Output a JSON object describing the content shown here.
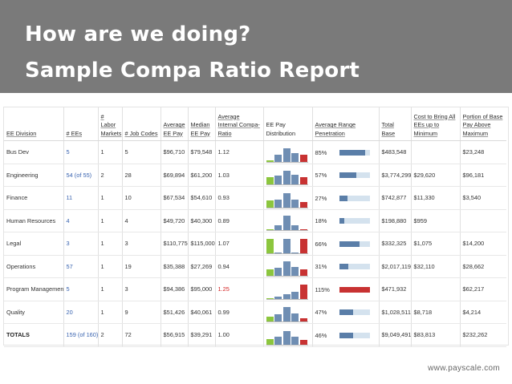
{
  "slide": {
    "title_line1": "How are we doing?",
    "title_line2": "Sample Compa Ratio Report",
    "footer": "www.payscale.com"
  },
  "colors": {
    "banner": "#7a7a7a",
    "bar_green": "#8cc63e",
    "bar_blue": "#6f8eb3",
    "bar_red": "#c83232",
    "link": "#3a64b0"
  },
  "headers": {
    "division": "EE Division",
    "ees": "# EEs",
    "labor": "# Labor Markets",
    "jobcodes": "# Job Codes",
    "avgpay": "Average EE Pay",
    "medpay": "Median EE Pay",
    "compa": "Average Internal Compa-Ratio",
    "dist": "EE Pay Distribution",
    "range": "Average Range Penetration",
    "base": "Total Base",
    "cost": "Cost to Bring All EEs up to Minimum",
    "portion": "Portion of Base Pay Above Maximum"
  },
  "rows": [
    {
      "division": "Bus Dev",
      "ees": "5",
      "labor": "1",
      "jobcodes": "5",
      "avgpay": "$96,710",
      "medpay": "$79,548",
      "compa": "1.12",
      "range": "85%",
      "range_value": 0.85,
      "base": "$483,548",
      "cost": "",
      "portion": "$23,248",
      "dist": [
        0.1,
        0.45,
        0.85,
        0.55,
        0.45
      ]
    },
    {
      "division": "Engineering",
      "ees": "54 (of 55)",
      "labor": "2",
      "jobcodes": "28",
      "avgpay": "$69,894",
      "medpay": "$61,200",
      "compa": "1.03",
      "range": "57%",
      "range_value": 0.57,
      "base": "$3,774,299",
      "cost": "$29,620",
      "portion": "$96,181",
      "dist": [
        0.45,
        0.55,
        0.85,
        0.6,
        0.45
      ]
    },
    {
      "division": "Finance",
      "ees": "11",
      "labor": "1",
      "jobcodes": "10",
      "avgpay": "$67,534",
      "medpay": "$54,610",
      "compa": "0.93",
      "range": "27%",
      "range_value": 0.27,
      "base": "$742,877",
      "cost": "$11,330",
      "portion": "$3,540",
      "dist": [
        0.45,
        0.5,
        0.9,
        0.5,
        0.35
      ]
    },
    {
      "division": "Human Resources",
      "ees": "4",
      "labor": "1",
      "jobcodes": "4",
      "avgpay": "$49,720",
      "medpay": "$40,300",
      "compa": "0.89",
      "range": "18%",
      "range_value": 0.18,
      "base": "$198,880",
      "cost": "$959",
      "portion": "",
      "dist": [
        0.05,
        0.3,
        0.9,
        0.3,
        0.05
      ]
    },
    {
      "division": "Legal",
      "ees": "3",
      "labor": "1",
      "jobcodes": "3",
      "avgpay": "$110,775",
      "medpay": "$115,000",
      "compa": "1.07",
      "range": "66%",
      "range_value": 0.66,
      "base": "$332,325",
      "cost": "$1,075",
      "portion": "$14,200",
      "dist": [
        0.9,
        0.05,
        0.9,
        0.05,
        0.9
      ]
    },
    {
      "division": "Operations",
      "ees": "57",
      "labor": "1",
      "jobcodes": "19",
      "avgpay": "$35,388",
      "medpay": "$27,269",
      "compa": "0.94",
      "range": "31%",
      "range_value": 0.31,
      "base": "$2,017,119",
      "cost": "$32,110",
      "portion": "$28,662",
      "dist": [
        0.4,
        0.5,
        0.9,
        0.55,
        0.4
      ]
    },
    {
      "division": "Program Management",
      "ees": "5",
      "labor": "1",
      "jobcodes": "3",
      "avgpay": "$94,386",
      "medpay": "$95,000",
      "compa": "1.25",
      "compa_red": true,
      "range": "115%",
      "range_value": 1.0,
      "range_red": true,
      "base": "$471,932",
      "cost": "",
      "portion": "$62,217",
      "dist": [
        0.05,
        0.15,
        0.3,
        0.45,
        0.9
      ]
    },
    {
      "division": "Quality",
      "ees": "20",
      "labor": "1",
      "jobcodes": "9",
      "avgpay": "$51,426",
      "medpay": "$40,061",
      "compa": "0.99",
      "range": "47%",
      "range_value": 0.47,
      "base": "$1,028,511",
      "cost": "$8,718",
      "portion": "$4,214",
      "dist": [
        0.3,
        0.45,
        0.9,
        0.5,
        0.2
      ]
    },
    {
      "division": "TOTALS",
      "ees": "159 (of 160)",
      "labor": "2",
      "jobcodes": "72",
      "avgpay": "$56,915",
      "medpay": "$39,291",
      "compa": "1.00",
      "range": "46%",
      "range_value": 0.46,
      "base": "$9,049,491",
      "cost": "$83,813",
      "portion": "$232,262",
      "dist": [
        0.35,
        0.5,
        0.85,
        0.5,
        0.3
      ],
      "totals": true
    }
  ]
}
